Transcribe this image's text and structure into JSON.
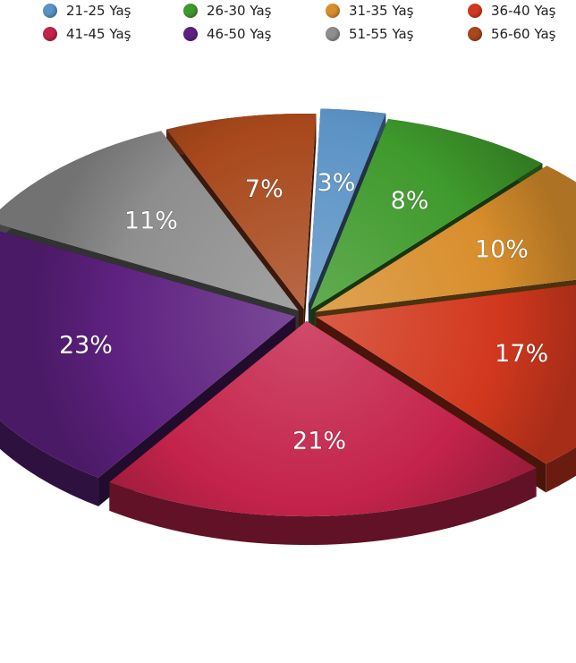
{
  "chart_data": {
    "type": "pie",
    "title": "",
    "legend_position": "top",
    "slices": [
      {
        "label": "21-25 Yaş",
        "value": 3,
        "display": "3%",
        "color": "#5b93c6"
      },
      {
        "label": "26-30 Yaş",
        "value": 8,
        "display": "8%",
        "color": "#3f9a2c"
      },
      {
        "label": "31-35 Yaş",
        "value": 10,
        "display": "10%",
        "color": "#d88e2c"
      },
      {
        "label": "36-40 Yaş",
        "value": 17,
        "display": "17%",
        "color": "#d2381e"
      },
      {
        "label": "41-45 Yaş",
        "value": 21,
        "display": "21%",
        "color": "#c4234b"
      },
      {
        "label": "46-50 Yaş",
        "value": 23,
        "display": "23%",
        "color": "#5e2180"
      },
      {
        "label": "51-55 Yaş",
        "value": 11,
        "display": "11%",
        "color": "#8e8e8e"
      },
      {
        "label": "56-60 Yaş",
        "value": 7,
        "display": "7%",
        "color": "#a8481c"
      }
    ]
  }
}
